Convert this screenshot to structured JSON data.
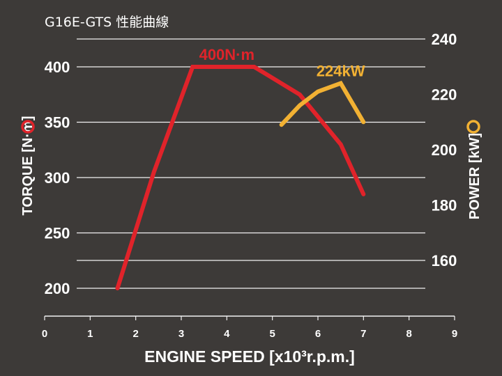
{
  "colors": {
    "background": "#3d3a38",
    "torque": "#e0232a",
    "power": "#f2b133",
    "grid": "#f2f2f2",
    "text": "#ffffff"
  },
  "chart_data": {
    "type": "line",
    "title": "G16E-GTS 性能曲線",
    "xlabel": "ENGINE SPEED [x10³r.p.m.]",
    "xlim": [
      0,
      9
    ],
    "x_ticks": [
      "0",
      "1",
      "2",
      "3",
      "4",
      "5",
      "6",
      "7",
      "8",
      "9"
    ],
    "y_left": {
      "label": "TORQUE [N·m]",
      "range": [
        170,
        430
      ],
      "ticks": [
        "200",
        "250",
        "300",
        "350",
        "400"
      ],
      "marker": "circle-red"
    },
    "y_right": {
      "label": "POWER [kW]",
      "range": [
        145,
        240
      ],
      "ticks": [
        "160",
        "180",
        "200",
        "220",
        "240"
      ],
      "marker": "circle-yellow"
    },
    "grid": "horizontal",
    "series": [
      {
        "key": "torque",
        "axis": "left",
        "color": "#e0232a",
        "x": [
          1.6,
          2.4,
          3.25,
          4.6,
          5.6,
          6.5,
          7.0
        ],
        "y": [
          200,
          305,
          400,
          400,
          375,
          330,
          285
        ]
      },
      {
        "key": "power",
        "axis": "right",
        "color": "#f2b133",
        "x": [
          5.2,
          5.6,
          6.0,
          6.5,
          7.0
        ],
        "y": [
          209,
          216,
          221,
          224,
          210
        ]
      }
    ],
    "annotations": [
      {
        "text": "400N·m",
        "series": "torque",
        "x": 4.0,
        "y": 400,
        "color": "#e0232a"
      },
      {
        "text": "224kW",
        "series": "power",
        "x": 6.5,
        "y": 224,
        "color": "#f2b133"
      }
    ]
  }
}
